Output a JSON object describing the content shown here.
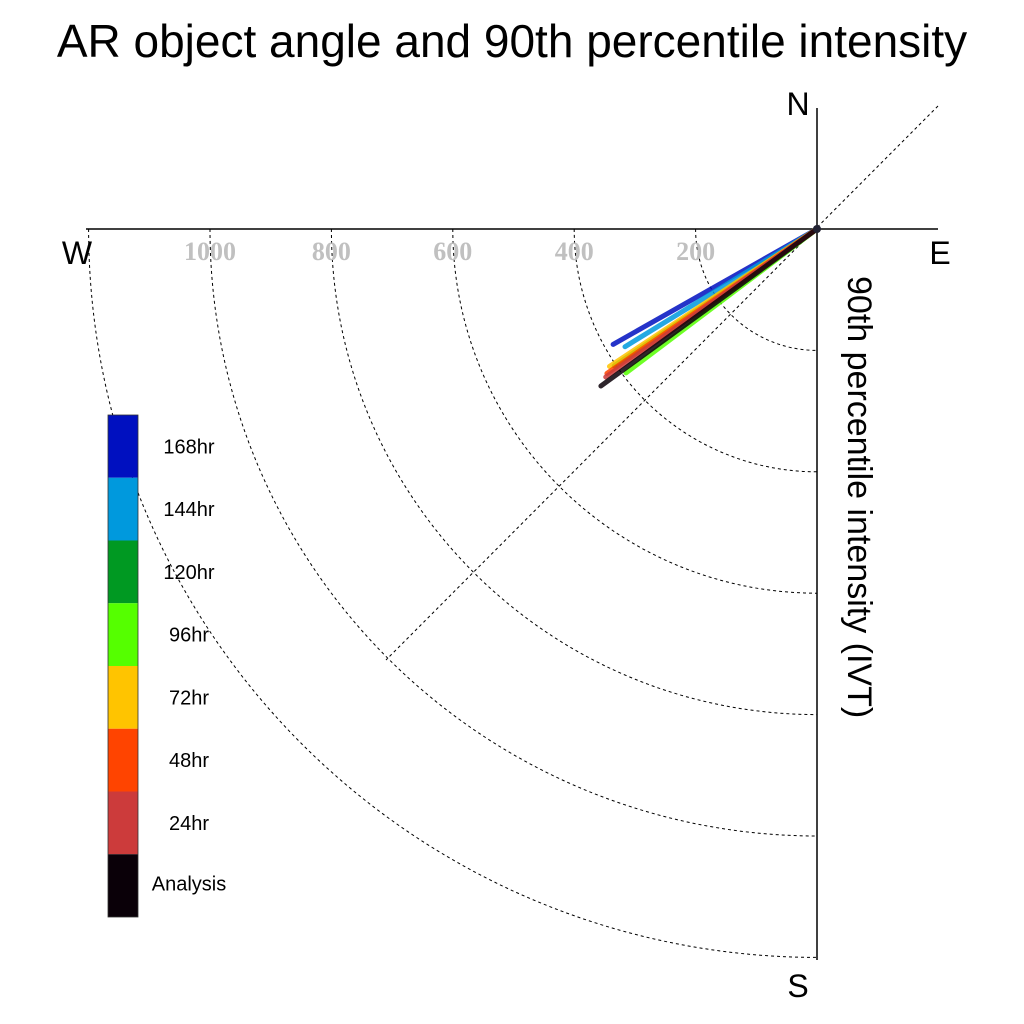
{
  "chart_data": {
    "type": "polar-vector",
    "title": "AR object angle and 90th percentile intensity",
    "ylabel": "90th percentile intensity (IVT)",
    "compass": {
      "north": "N",
      "south": "S",
      "east": "E",
      "west": "W"
    },
    "rings": [
      200,
      400,
      600,
      800,
      1000,
      1200
    ],
    "tick_labels": [
      "200",
      "400",
      "600",
      "800",
      "1000"
    ],
    "tick_values": [
      200,
      400,
      600,
      800,
      1000
    ],
    "radius_max": 1200,
    "series": [
      {
        "name": "168hr",
        "color": "#0010c0",
        "angle_deg": 240.5,
        "intensity": 386
      },
      {
        "name": "144hr",
        "color": "#0099dd",
        "angle_deg": 238.5,
        "intensity": 371
      },
      {
        "name": "120hr",
        "color": "#009922",
        "angle_deg": 236.0,
        "intensity": 403
      },
      {
        "name": "96hr",
        "color": "#55ff00",
        "angle_deg": 233.0,
        "intensity": 394
      },
      {
        "name": "72hr",
        "color": "#ffc400",
        "angle_deg": 236.5,
        "intensity": 410
      },
      {
        "name": "48hr",
        "color": "#ff4400",
        "angle_deg": 235.5,
        "intensity": 420
      },
      {
        "name": "24hr",
        "color": "#cc3b3b",
        "angle_deg": 235.0,
        "intensity": 425
      },
      {
        "name": "Analysis",
        "color": "#0a0008",
        "angle_deg": 234.0,
        "intensity": 440
      }
    ]
  }
}
